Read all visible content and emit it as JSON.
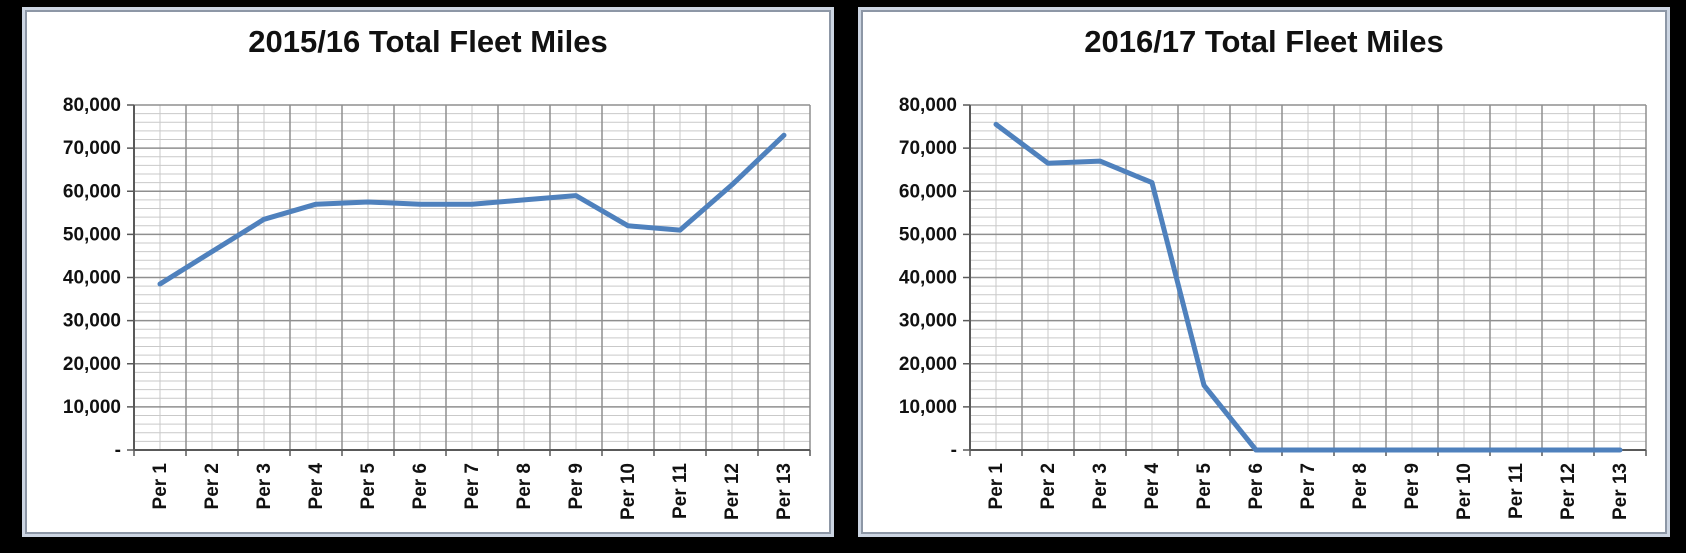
{
  "background_color": "#000000",
  "panel_style": {
    "background": "#ffffff",
    "border_inner": "#8d97a6",
    "border_outer": "#ccd5e2"
  },
  "styles": {
    "line_color": "#4F81BD",
    "major_grid_color": "#8f8f8f",
    "minor_grid_color": "#c9c9c9",
    "axis_color": "#595959",
    "text_color": "#111111"
  },
  "chart_data": [
    {
      "type": "line",
      "title": "2015/16 Total Fleet Miles",
      "categories": [
        "Per 1",
        "Per 2",
        "Per 3",
        "Per 4",
        "Per 5",
        "Per 6",
        "Per 7",
        "Per 8",
        "Per 9",
        "Per 10",
        "Per 11",
        "Per 12",
        "Per 13"
      ],
      "values": [
        38500,
        46000,
        53500,
        57000,
        57500,
        57000,
        57000,
        58000,
        59000,
        52000,
        51000,
        61500,
        73000
      ],
      "xlabel": "",
      "ylabel": "",
      "ylim": [
        0,
        80000
      ],
      "y_major_unit": 10000,
      "y_minor_unit": 2000,
      "y_tick_labels": [
        "80,000",
        "70,000",
        "60,000",
        "50,000",
        "40,000",
        "30,000",
        "20,000",
        "10,000",
        "-"
      ],
      "legend": "none",
      "grid": "major+minor"
    },
    {
      "type": "line",
      "title": "2016/17 Total Fleet Miles",
      "categories": [
        "Per 1",
        "Per 2",
        "Per 3",
        "Per 4",
        "Per 5",
        "Per 6",
        "Per 7",
        "Per 8",
        "Per 9",
        "Per 10",
        "Per 11",
        "Per 12",
        "Per 13"
      ],
      "values": [
        75500,
        66500,
        67000,
        62000,
        15000,
        0,
        0,
        0,
        0,
        0,
        0,
        0,
        0
      ],
      "xlabel": "",
      "ylabel": "",
      "ylim": [
        0,
        80000
      ],
      "y_major_unit": 10000,
      "y_minor_unit": 2000,
      "y_tick_labels": [
        "80,000",
        "70,000",
        "60,000",
        "50,000",
        "40,000",
        "30,000",
        "20,000",
        "10,000",
        "-"
      ],
      "legend": "none",
      "grid": "major+minor"
    }
  ]
}
